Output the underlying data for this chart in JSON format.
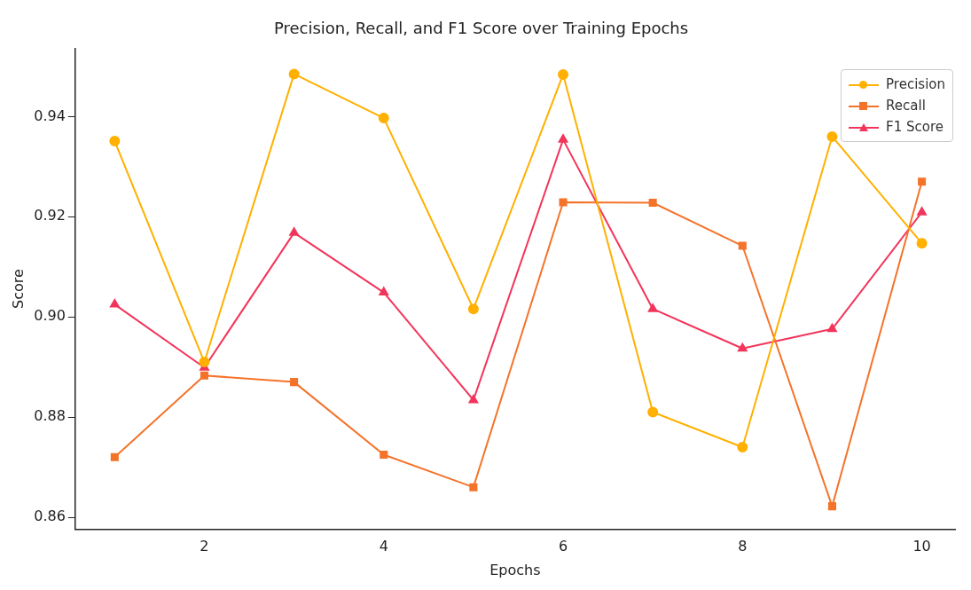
{
  "chart_data": {
    "type": "line",
    "title": "Precision, Recall, and F1 Score over Training Epochs",
    "xlabel": "Epochs",
    "ylabel": "Score",
    "x": [
      1,
      2,
      3,
      4,
      5,
      6,
      7,
      8,
      9,
      10
    ],
    "series": [
      {
        "name": "Precision",
        "color": "#ffb000",
        "marker": "circle",
        "values": [
          0.9351,
          0.891,
          0.9485,
          0.9397,
          0.9016,
          0.9484,
          0.881,
          0.874,
          0.936,
          0.9147
        ]
      },
      {
        "name": "Recall",
        "color": "#f4732a",
        "marker": "square",
        "values": [
          0.872,
          0.8883,
          0.887,
          0.8725,
          0.866,
          0.9229,
          0.9228,
          0.9142,
          0.8622,
          0.927
        ]
      },
      {
        "name": "F1 Score",
        "color": "#f2355b",
        "marker": "triangle",
        "values": [
          0.9025,
          0.8899,
          0.9168,
          0.9049,
          0.8834,
          0.9354,
          0.9016,
          0.8937,
          0.8976,
          0.9209
        ]
      }
    ],
    "xlim": [
      0.56,
      10.37
    ],
    "xticks": [
      2,
      4,
      6,
      8,
      10
    ],
    "ylim": [
      0.8576,
      0.9536
    ],
    "yticks": [
      0.86,
      0.88,
      {
        "value": 0.9,
        "label": "0.90"
      },
      0.92,
      0.94
    ],
    "grid": false,
    "legend": "top right",
    "line_style": "solid"
  }
}
